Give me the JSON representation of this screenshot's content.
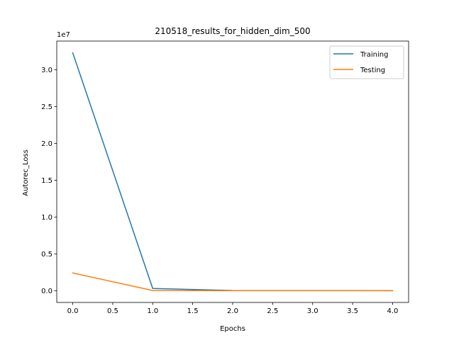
{
  "chart_data": {
    "type": "line",
    "title": "210518_results_for_hidden_dim_500",
    "xlabel": "Epochs",
    "ylabel": "Autorec_Loss",
    "offset_label": "1e7",
    "x": [
      0,
      1,
      2,
      3,
      4
    ],
    "series": [
      {
        "name": "Training",
        "color": "#1f77b4",
        "values": [
          32300000,
          300000,
          20000,
          10000,
          5000
        ]
      },
      {
        "name": "Testing",
        "color": "#ff7f0e",
        "values": [
          2400000,
          20000,
          5000,
          3000,
          2000
        ]
      }
    ],
    "xlim": [
      -0.2,
      4.2
    ],
    "ylim": [
      -1600000,
      33900000
    ],
    "xticks": [
      0,
      0.5,
      1,
      1.5,
      2,
      2.5,
      3,
      3.5,
      4
    ],
    "xtick_labels": [
      "0.0",
      "0.5",
      "1.0",
      "1.5",
      "2.0",
      "2.5",
      "3.0",
      "3.5",
      "4.0"
    ],
    "yticks": [
      0,
      5000000,
      10000000,
      15000000,
      20000000,
      25000000,
      30000000
    ],
    "ytick_labels": [
      "0.0",
      "0.5",
      "1.0",
      "1.5",
      "2.0",
      "2.5",
      "3.0"
    ],
    "legend_position": "top-right",
    "grid": false
  }
}
